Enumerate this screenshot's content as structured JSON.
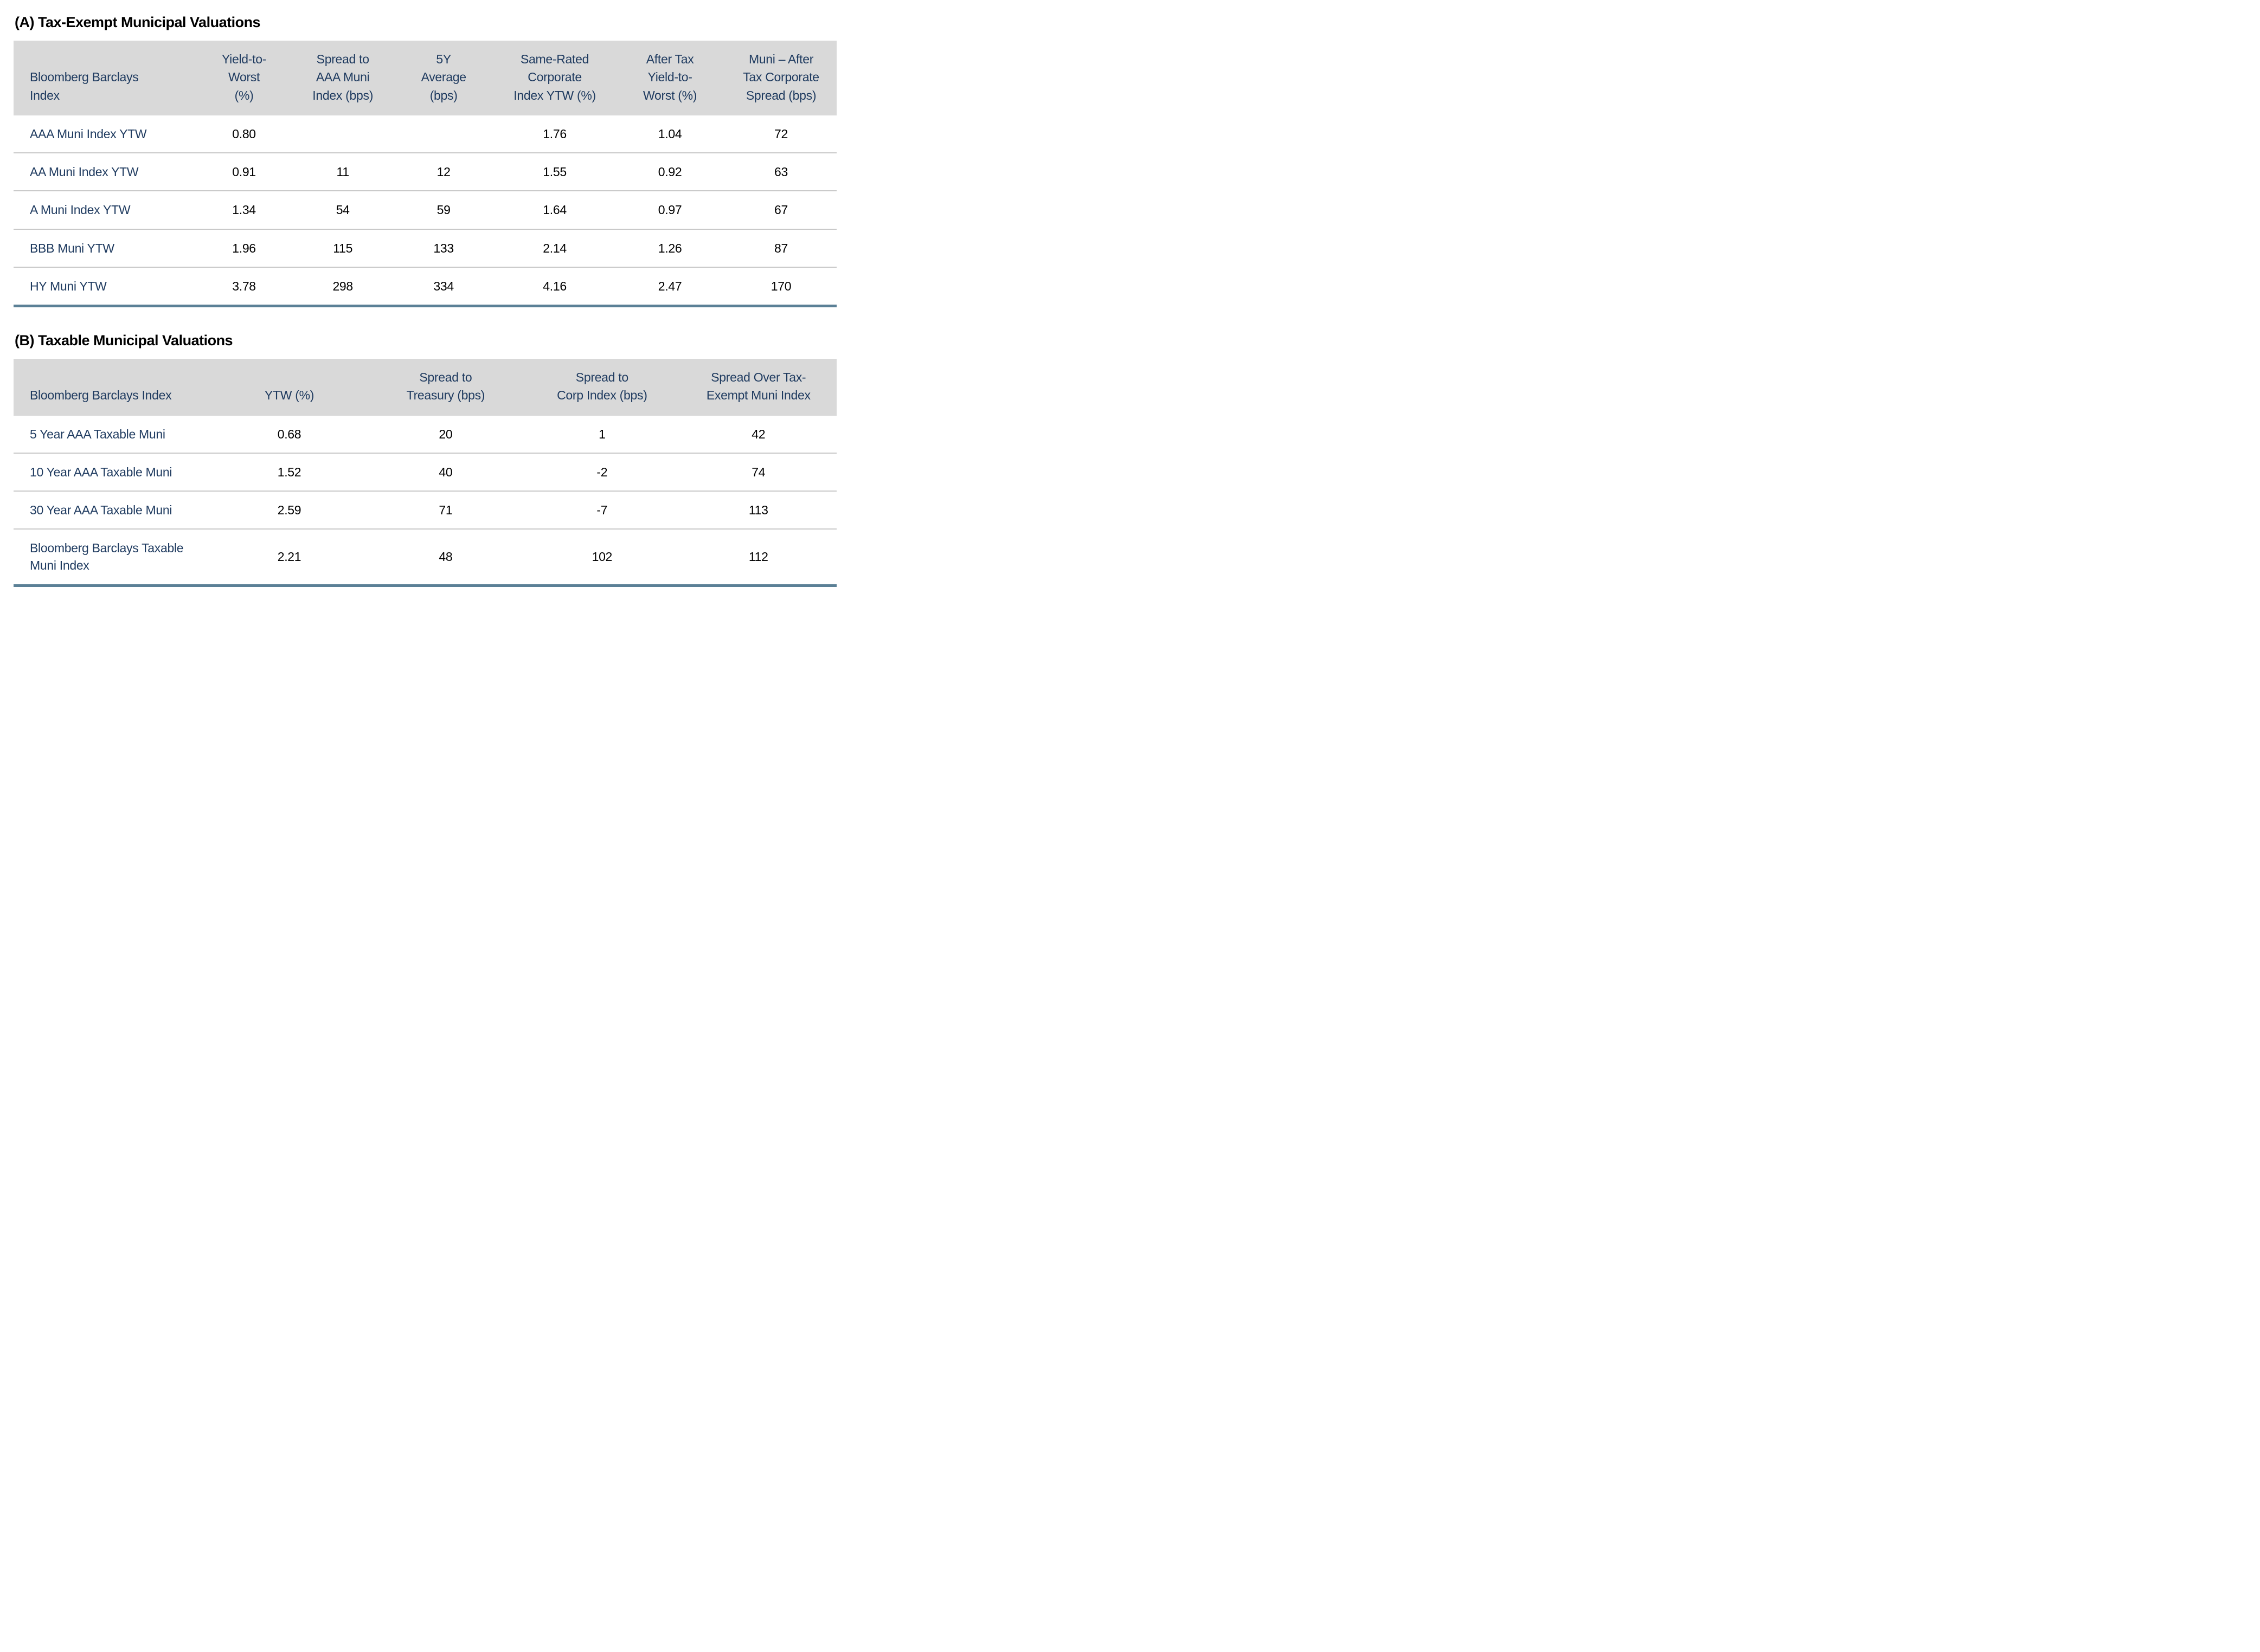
{
  "colors": {
    "header_bg": "#d9d9d9",
    "navy_text": "#1e3a5f",
    "row_rule_gray": "#c9c9c9",
    "bottom_rule_blue": "#5b8096",
    "body_text": "#000000",
    "background": "#ffffff"
  },
  "section_a": {
    "title": "(A) Tax-Exempt Municipal Valuations",
    "table": {
      "col_widths": [
        "22%",
        "12%",
        "12%",
        "12.5%",
        "14.5%",
        "13.5%",
        "13.5%"
      ],
      "headers": [
        "Bloomberg Barclays\nIndex",
        "Yield-to-\nWorst\n(%)",
        "Spread to\nAAA Muni\nIndex (bps)",
        "5Y\nAverage\n(bps)",
        "Same-Rated\nCorporate\nIndex YTW (%)",
        "After Tax\nYield-to-\nWorst (%)",
        "Muni – After\nTax Corporate\nSpread (bps)"
      ],
      "rows": [
        [
          "AAA Muni Index YTW",
          "0.80",
          "",
          "",
          "1.76",
          "1.04",
          "72"
        ],
        [
          "AA Muni Index YTW",
          "0.91",
          "11",
          "12",
          "1.55",
          "0.92",
          "63"
        ],
        [
          "A Muni Index YTW",
          "1.34",
          "54",
          "59",
          "1.64",
          "0.97",
          "67"
        ],
        [
          "BBB Muni YTW",
          "1.96",
          "115",
          "133",
          "2.14",
          "1.26",
          "87"
        ],
        [
          "HY Muni YTW",
          "3.78",
          "298",
          "334",
          "4.16",
          "2.47",
          "170"
        ]
      ]
    }
  },
  "section_b": {
    "title": "(B) Taxable Municipal Valuations",
    "table": {
      "col_widths": [
        "24%",
        "19%",
        "19%",
        "19%",
        "19%"
      ],
      "headers": [
        "Bloomberg Barclays Index",
        "YTW (%)",
        "Spread to\nTreasury (bps)",
        "Spread to\nCorp Index (bps)",
        "Spread Over Tax-\nExempt Muni Index"
      ],
      "rows": [
        [
          "5 Year AAA Taxable Muni",
          "0.68",
          "20",
          "1",
          "42"
        ],
        [
          "10 Year AAA Taxable Muni",
          "1.52",
          "40",
          "-2",
          "74"
        ],
        [
          "30 Year AAA Taxable Muni",
          "2.59",
          "71",
          "-7",
          "113"
        ],
        [
          "Bloomberg Barclays Taxable\nMuni Index",
          "2.21",
          "48",
          "102",
          "112"
        ]
      ]
    }
  }
}
